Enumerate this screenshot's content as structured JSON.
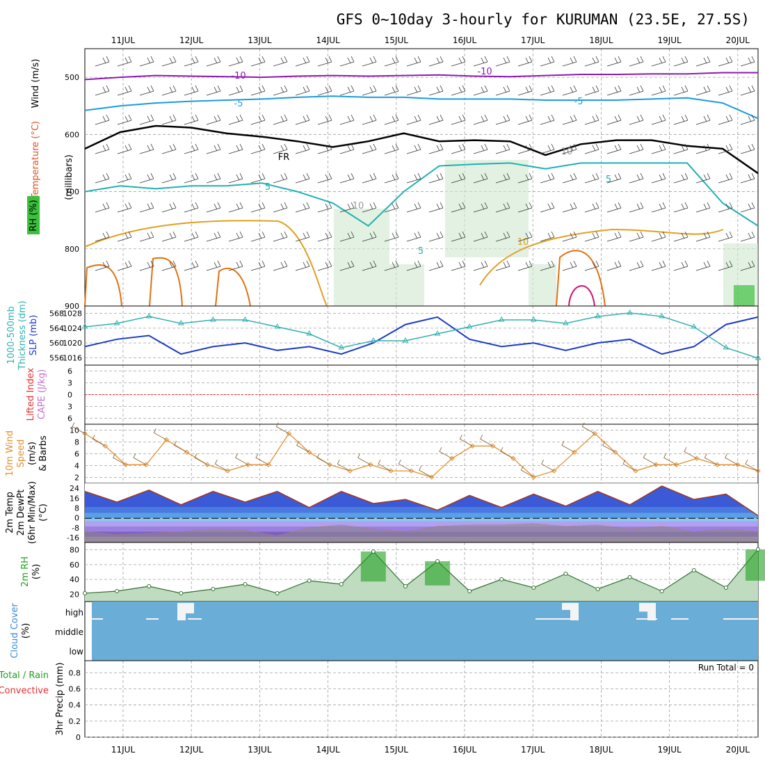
{
  "title": "GFS 0~10day 3-hourly for KURUMAN (23.5E, 27.5S)",
  "dates": [
    "11JUL",
    "12JUL",
    "13JUL",
    "14JUL",
    "15JUL",
    "16JUL",
    "17JUL",
    "18JUL",
    "19JUL",
    "20JUL"
  ],
  "run_total": "Run Total = 0",
  "colors": {
    "contour_minus10": "#8a1ab0",
    "contour_minus5": "#1a9ae0",
    "freezing": "#000000",
    "contour5": "#20b0b0",
    "contour10": "#e0a020",
    "contour15": "#e07010",
    "contour20": "#d01070",
    "slp": "#1a3ac8",
    "thickness": "#30b0b0",
    "wind10m": "#e09030",
    "temp2m": "#40b020",
    "rh2m": "#20a020",
    "cloud": "#6aaed8",
    "lifted": "#e03030",
    "cape": "#c070d0"
  },
  "panels": {
    "upper": {
      "ylabel": "(millibars)",
      "labels": [
        {
          "text": "Wind (m/s)",
          "color": "#000000"
        },
        {
          "text": "Temperature (°C)",
          "color": "#e05020"
        },
        {
          "text": "RH (%)",
          "color": "#20a020"
        }
      ],
      "yticks": [
        "500",
        "600",
        "700",
        "800",
        "900"
      ],
      "contour_labels": {
        "m10": "-10",
        "m5": "-5",
        "fr": "FR",
        "c5": "5",
        "c10": "10",
        "c10b": "10",
        "c10c": "10"
      }
    },
    "slp": {
      "left_ticks": [
        "568",
        "564",
        "560",
        "556"
      ],
      "right_ticks": [
        "1028",
        "1024",
        "1020",
        "1016"
      ],
      "labels": [
        {
          "text": "1000-500mb",
          "color": "#30b0b0"
        },
        {
          "text": "Thickness (dm)",
          "color": "#30b0b0"
        },
        {
          "text": "SLP (mb)",
          "color": "#1a3ac8"
        }
      ]
    },
    "li": {
      "yticks": [
        "6",
        "3",
        "0",
        "3",
        "6"
      ],
      "labels": [
        {
          "text": "Lifted Index",
          "color": "#e03030"
        },
        {
          "text": "CAPE (J/kg)",
          "color": "#c070d0"
        }
      ]
    },
    "wind": {
      "yticks": [
        "10",
        "8",
        "6",
        "4",
        "2"
      ],
      "labels": [
        {
          "text": "10m Wind",
          "color": "#e09030"
        },
        {
          "text": "Speed",
          "color": "#e09030"
        },
        {
          "text": "(m/s)",
          "color": "#000000"
        },
        {
          "text": "& Barbs",
          "color": "#000000"
        }
      ]
    },
    "temp": {
      "yticks": [
        "24",
        "16",
        "8",
        "0",
        "-8",
        "-16"
      ],
      "labels": [
        {
          "text": "2m Temp",
          "color": "#000000"
        },
        {
          "text": "2m DewPt",
          "color": "#000000"
        },
        {
          "text": "(6hr Min/Max)",
          "color": "#000000"
        },
        {
          "text": "(°C)",
          "color": "#000000"
        }
      ]
    },
    "rh": {
      "yticks": [
        "80",
        "60",
        "40",
        "20"
      ],
      "labels": [
        {
          "text": "2m RH",
          "color": "#20a020"
        },
        {
          "text": "(%)",
          "color": "#000000"
        }
      ]
    },
    "cloud": {
      "levels": [
        "high",
        "middle",
        "low"
      ],
      "labels": [
        {
          "text": "Cloud Cover",
          "color": "#3a8ad8"
        },
        {
          "text": "(%)",
          "color": "#000000"
        }
      ]
    },
    "precip": {
      "yticks": [
        "0.8",
        "0.6",
        "0.4",
        "0.2",
        "0"
      ],
      "labels": [
        {
          "text": "Total / Rain",
          "color": "#20a020"
        },
        {
          "text": "Convective",
          "color": "#e03030"
        },
        {
          "text": "3hr Precip (mm)",
          "color": "#000000"
        }
      ]
    }
  },
  "chart_data": [
    {
      "type": "line",
      "name": "upper-air",
      "ylabel": "millibars",
      "ylim": [
        900,
        450
      ],
      "series": [
        {
          "name": "-10",
          "values": [
            504,
            500,
            497,
            498,
            499,
            500,
            498,
            497,
            498,
            497,
            496,
            498,
            499,
            497,
            495,
            495,
            494,
            494,
            492,
            492
          ]
        },
        {
          "name": "-5",
          "values": [
            558,
            550,
            545,
            542,
            540,
            538,
            535,
            533,
            535,
            535,
            538,
            538,
            538,
            540,
            540,
            540,
            538,
            536,
            545,
            572
          ]
        },
        {
          "name": "FR",
          "values": [
            625,
            596,
            585,
            588,
            598,
            604,
            612,
            622,
            612,
            598,
            612,
            610,
            612,
            636,
            617,
            610,
            610,
            620,
            625,
            668
          ]
        },
        {
          "name": "5",
          "values": [
            700,
            690,
            695,
            690,
            690,
            685,
            700,
            720,
            760,
            700,
            655,
            652,
            650,
            660,
            650,
            650,
            650,
            650,
            720,
            760
          ]
        }
      ]
    },
    {
      "type": "line",
      "name": "slp-thickness",
      "x_label": "",
      "series": [
        {
          "name": "SLP",
          "values": [
            1018,
            1020,
            1021,
            1016,
            1018,
            1019,
            1017,
            1018,
            1016,
            1019,
            1024,
            1026,
            1020,
            1018,
            1019,
            1017,
            1019,
            1020,
            1016,
            1018,
            1024,
            1026
          ]
        },
        {
          "name": "Thickness",
          "values": [
            564,
            565,
            567,
            565,
            566,
            566,
            564,
            562,
            558,
            560,
            560,
            562,
            564,
            566,
            566,
            565,
            567,
            568,
            567,
            564,
            558,
            555
          ]
        }
      ]
    },
    {
      "type": "line",
      "name": "10m-wind",
      "values": [
        9,
        7,
        4,
        4,
        8,
        6,
        4,
        3,
        4,
        4,
        9,
        6,
        4,
        3,
        4,
        3,
        3,
        2,
        5,
        7,
        7,
        5,
        2,
        3,
        6,
        9,
        6,
        3,
        4,
        4,
        5,
        4,
        4,
        3
      ],
      "ylim": [
        1,
        10
      ]
    },
    {
      "type": "area",
      "name": "2m-temp",
      "max": [
        20,
        12,
        21,
        10,
        20,
        12,
        20,
        8,
        20,
        11,
        14,
        6,
        17,
        8,
        18,
        9,
        20,
        10,
        24,
        14,
        18,
        2
      ],
      "dewpoint": [
        -10,
        -12,
        -11,
        -10,
        -8,
        -9,
        -13,
        -7,
        -5,
        -8,
        -10,
        -6,
        -5,
        -5,
        -4,
        -6,
        -5,
        -8,
        -6,
        -10,
        -8,
        -10
      ],
      "ylim": [
        -18,
        26
      ]
    },
    {
      "type": "area",
      "name": "2m-rh",
      "values": [
        12,
        15,
        22,
        12,
        18,
        25,
        12,
        30,
        25,
        72,
        22,
        58,
        15,
        32,
        20,
        40,
        18,
        35,
        15,
        45,
        20,
        75
      ],
      "ylim": [
        0,
        85
      ]
    },
    {
      "type": "bar",
      "name": "cloud-high",
      "categories": [
        "11.8",
        "11.9",
        "17.6",
        "17.7",
        "18.7",
        "18.8"
      ],
      "values": [
        100,
        60,
        100,
        40,
        100,
        50
      ]
    },
    {
      "type": "bar",
      "name": "3hr-precip",
      "ylim": [
        0,
        1
      ],
      "values": [
        0,
        0,
        0,
        0,
        0,
        0,
        0,
        0,
        0,
        0
      ]
    }
  ]
}
